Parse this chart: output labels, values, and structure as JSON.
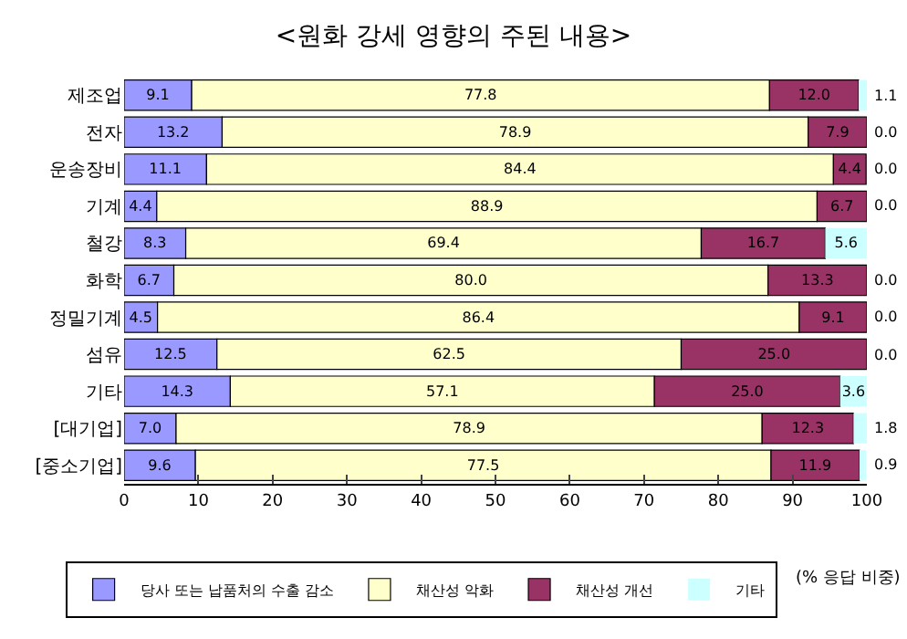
{
  "chart_data": {
    "type": "bar",
    "orientation": "horizontal",
    "stacked": true,
    "title": "<원화 강세 영향의 주된 내용>",
    "categories": [
      "제조업",
      "전자",
      "운송장비",
      "기계",
      "철강",
      "화학",
      "정밀기계",
      "섬유",
      "기타",
      "[대기업]",
      "[중소기업]"
    ],
    "series": [
      {
        "name": "당사 또는 납품처의 수출 감소",
        "color": "#9999ff",
        "values": [
          9.1,
          13.2,
          11.1,
          4.4,
          8.3,
          6.7,
          4.5,
          12.5,
          14.3,
          7.0,
          9.6
        ],
        "value_labels": [
          "9.1",
          "13.2",
          "11.1",
          "4.4",
          "8.3",
          "6.7",
          "4.5",
          "12.5",
          "14.3",
          "7.0",
          "9.6"
        ]
      },
      {
        "name": "채산성 악화",
        "color": "#ffffcc",
        "values": [
          77.8,
          78.9,
          84.4,
          88.9,
          69.4,
          80.0,
          86.4,
          62.5,
          57.1,
          78.9,
          77.5
        ],
        "value_labels": [
          "77.8",
          "78.9",
          "84.4",
          "88.9",
          "69.4",
          "80.0",
          "86.4",
          "62.5",
          "57.1",
          "78.9",
          "77.5"
        ]
      },
      {
        "name": "채산성 개선",
        "color": "#993366",
        "values": [
          12.0,
          7.9,
          4.4,
          6.7,
          16.7,
          13.3,
          9.1,
          25.0,
          25.0,
          12.3,
          11.9
        ],
        "value_labels": [
          "12.0",
          "7.9",
          "4.4",
          "6.7",
          "16.7",
          "13.3",
          "9.1",
          "25.0",
          "25.0",
          "12.3",
          "11.9"
        ]
      },
      {
        "name": "기타",
        "color": "#ccffff",
        "values": [
          1.1,
          0.0,
          0.0,
          0.0,
          5.6,
          0.0,
          0.0,
          0.0,
          3.6,
          1.8,
          0.9
        ],
        "value_labels": [
          "1.1",
          "0.0",
          "0.0",
          "0.0",
          "5.6",
          "0.0",
          "0.0",
          "0.0",
          "3.6",
          "1.8",
          "0.9"
        ]
      }
    ],
    "xlim": [
      0,
      100
    ],
    "xticks": [
      0,
      10,
      20,
      30,
      40,
      50,
      60,
      70,
      80,
      90,
      100
    ],
    "legend": "bottom",
    "annotations": [
      "(% 응답 비중)"
    ]
  }
}
